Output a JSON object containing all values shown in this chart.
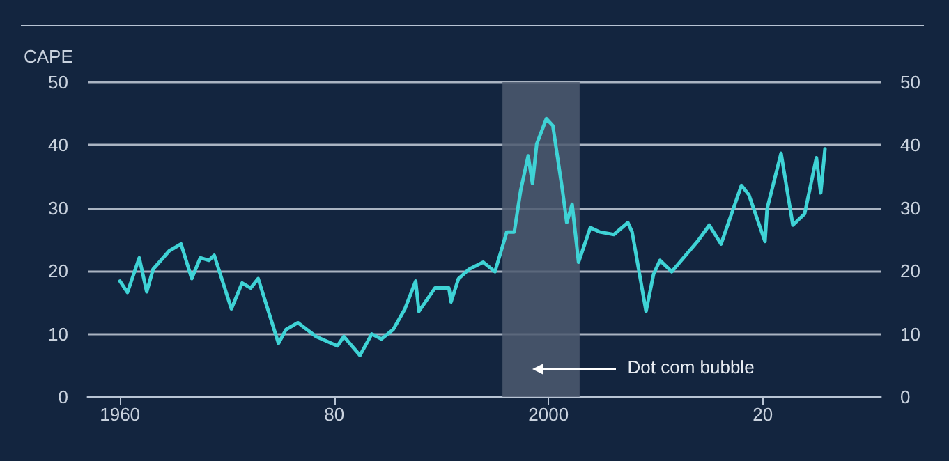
{
  "chart_data": {
    "type": "line",
    "ylabel": "CAPE",
    "series": [
      {
        "color": "#3fd3d6",
        "x": [
          1960,
          1960.7,
          1961.8,
          1962.5,
          1963.1,
          1964.6,
          1965.7,
          1966.7,
          1967.5,
          1968.3,
          1968.8,
          1970.4,
          1971.4,
          1972.2,
          1972.9,
          1974.8,
          1975.5,
          1976.6,
          1978.3,
          1980.3,
          1980.9,
          1982.4,
          1983.5,
          1984.4,
          1985.5,
          1986.6,
          1987.6,
          1987.9,
          1989.4,
          1990.7,
          1990.9,
          1991.6,
          1992.6,
          1993.9,
          1995,
          1996.1,
          1996.8,
          1997.4,
          1998.1,
          1998.5,
          1998.9,
          1999.8,
          2000.4,
          2001.3,
          2001.7,
          2002.2,
          2002.8,
          2003.9,
          2004.8,
          2006.1,
          2007.4,
          2007.8,
          2009.1,
          2009.8,
          2010.4,
          2011.5,
          2013.9,
          2015,
          2016.1,
          2018,
          2018.7,
          2020.2,
          2020.4,
          2021.7,
          2022.8,
          2023.9,
          2025,
          2025.4,
          2025.8
        ],
        "values": [
          18.4,
          16.6,
          22.1,
          16.7,
          20.3,
          23.2,
          24.3,
          18.8,
          22.1,
          21.7,
          22.5,
          14.0,
          18.1,
          17.3,
          18.8,
          8.5,
          10.7,
          11.8,
          9.6,
          8.1,
          9.6,
          6.6,
          10.0,
          9.2,
          10.7,
          14.0,
          18.4,
          13.6,
          17.3,
          17.3,
          15.1,
          18.8,
          20.3,
          21.4,
          19.9,
          26.2,
          26.2,
          32.8,
          38.3,
          33.9,
          40.2,
          44.2,
          43.1,
          32.8,
          27.7,
          30.6,
          21.4,
          26.9,
          26.2,
          25.8,
          27.7,
          26.2,
          13.6,
          19.5,
          21.7,
          19.9,
          24.7,
          27.3,
          24.3,
          33.6,
          32.1,
          24.7,
          29.9,
          38.7,
          27.3,
          29.1,
          38.0,
          32.4,
          39.4
        ]
      }
    ],
    "xlim": [
      1957,
      2031
    ],
    "xticks": [
      1960,
      {
        "value": 1980,
        "label": "80"
      },
      2000,
      {
        "value": 2020,
        "label": "20"
      }
    ],
    "ylim": [
      0,
      50
    ],
    "yticks": [
      0,
      10,
      20,
      30,
      40,
      50
    ],
    "y2lim": [
      0,
      50
    ],
    "y2ticks": [
      0,
      10,
      20,
      30,
      40,
      50
    ],
    "bands": [
      {
        "axis": "x",
        "from": 1995.7,
        "to": 2002.9,
        "label": "Dot com bubble",
        "color": "#4d5b70"
      }
    ],
    "grid": "y",
    "marker": "none",
    "line_style": "solid"
  }
}
